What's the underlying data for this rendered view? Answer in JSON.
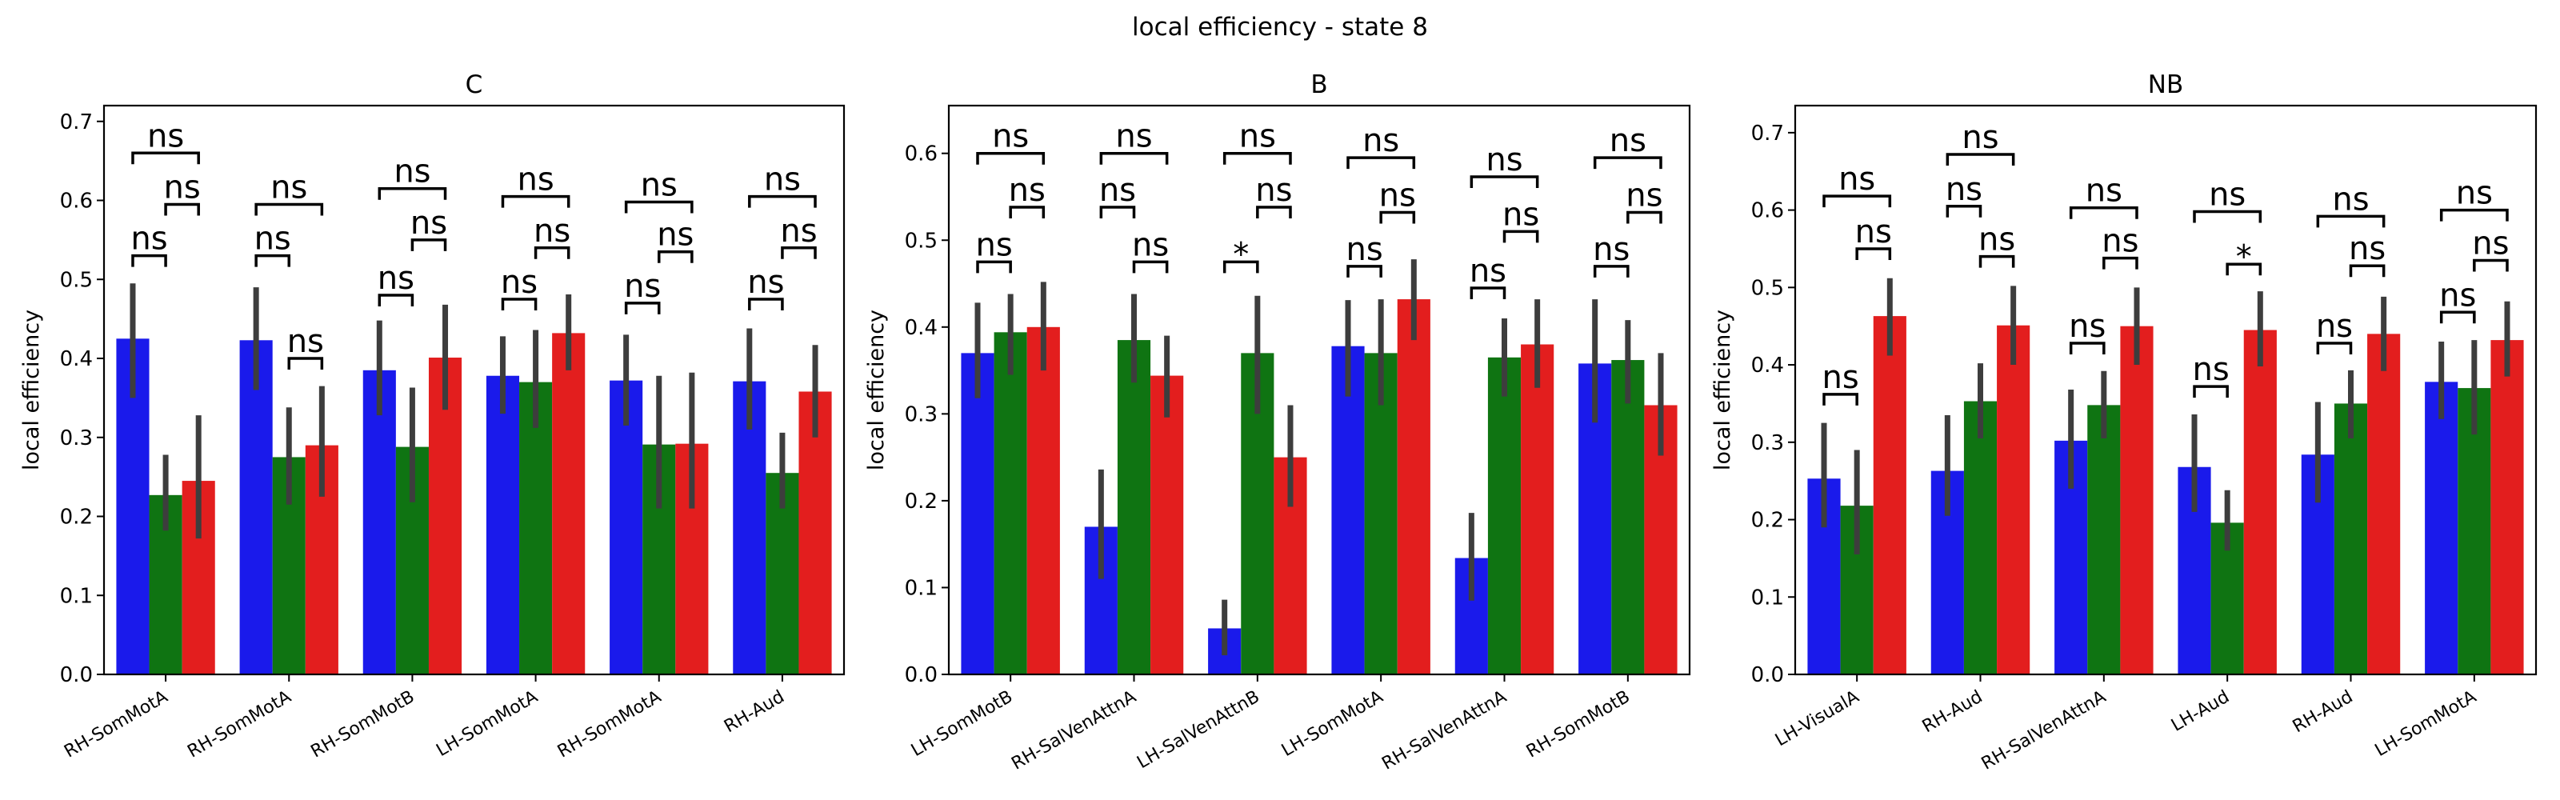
{
  "figure": {
    "title": "local efficiency - state 8"
  },
  "colors": {
    "series": [
      "#1a1aeb",
      "#0f7412",
      "#e31e1e"
    ],
    "error_bar": "#3d3d3d"
  },
  "chart_data": [
    {
      "type": "bar",
      "title": "C",
      "ylabel": "local efficiency",
      "ylim": [
        0,
        0.72
      ],
      "yticks": [
        0.0,
        0.1,
        0.2,
        0.3,
        0.4,
        0.5,
        0.6,
        0.7
      ],
      "ytick_labels": [
        "0.0",
        "0.1",
        "0.2",
        "0.3",
        "0.4",
        "0.5",
        "0.6",
        "0.7"
      ],
      "categories": [
        "RH-SomMotA",
        "RH-SomMotA",
        "RH-SomMotB",
        "LH-SomMotA",
        "RH-SomMotA",
        "RH-Aud"
      ],
      "series": [
        {
          "values": [
            0.425,
            0.423,
            0.385,
            0.378,
            0.372,
            0.371
          ],
          "err_low": [
            0.35,
            0.36,
            0.328,
            0.33,
            0.315,
            0.31
          ],
          "err_high": [
            0.495,
            0.49,
            0.448,
            0.428,
            0.43,
            0.438
          ]
        },
        {
          "values": [
            0.227,
            0.275,
            0.288,
            0.37,
            0.291,
            0.255
          ],
          "err_low": [
            0.182,
            0.215,
            0.218,
            0.312,
            0.21,
            0.21
          ],
          "err_high": [
            0.278,
            0.338,
            0.363,
            0.436,
            0.378,
            0.306
          ]
        },
        {
          "values": [
            0.245,
            0.29,
            0.401,
            0.432,
            0.292,
            0.358
          ],
          "err_low": [
            0.172,
            0.225,
            0.335,
            0.385,
            0.21,
            0.3
          ],
          "err_high": [
            0.328,
            0.365,
            0.468,
            0.481,
            0.382,
            0.417
          ]
        }
      ],
      "annotations": [
        {
          "group": 0,
          "from": 0,
          "to": 1,
          "y": 0.53,
          "label": "ns"
        },
        {
          "group": 0,
          "from": 1,
          "to": 2,
          "y": 0.595,
          "label": "ns"
        },
        {
          "group": 0,
          "from": 0,
          "to": 2,
          "y": 0.66,
          "label": "ns"
        },
        {
          "group": 1,
          "from": 0,
          "to": 1,
          "y": 0.53,
          "label": "ns"
        },
        {
          "group": 1,
          "from": 1,
          "to": 2,
          "y": 0.4,
          "label": "ns"
        },
        {
          "group": 1,
          "from": 0,
          "to": 2,
          "y": 0.595,
          "label": "ns"
        },
        {
          "group": 2,
          "from": 0,
          "to": 1,
          "y": 0.48,
          "label": "ns"
        },
        {
          "group": 2,
          "from": 1,
          "to": 2,
          "y": 0.55,
          "label": "ns"
        },
        {
          "group": 2,
          "from": 0,
          "to": 2,
          "y": 0.615,
          "label": "ns"
        },
        {
          "group": 3,
          "from": 0,
          "to": 1,
          "y": 0.475,
          "label": "ns"
        },
        {
          "group": 3,
          "from": 1,
          "to": 2,
          "y": 0.54,
          "label": "ns"
        },
        {
          "group": 3,
          "from": 0,
          "to": 2,
          "y": 0.605,
          "label": "ns"
        },
        {
          "group": 4,
          "from": 0,
          "to": 1,
          "y": 0.47,
          "label": "ns"
        },
        {
          "group": 4,
          "from": 1,
          "to": 2,
          "y": 0.535,
          "label": "ns"
        },
        {
          "group": 4,
          "from": 0,
          "to": 2,
          "y": 0.598,
          "label": "ns"
        },
        {
          "group": 5,
          "from": 0,
          "to": 1,
          "y": 0.475,
          "label": "ns"
        },
        {
          "group": 5,
          "from": 1,
          "to": 2,
          "y": 0.54,
          "label": "ns"
        },
        {
          "group": 5,
          "from": 0,
          "to": 2,
          "y": 0.605,
          "label": "ns"
        }
      ]
    },
    {
      "type": "bar",
      "title": "B",
      "ylabel": "local efficiency",
      "ylim": [
        0,
        0.655
      ],
      "yticks": [
        0.0,
        0.1,
        0.2,
        0.3,
        0.4,
        0.5,
        0.6
      ],
      "ytick_labels": [
        "0.0",
        "0.1",
        "0.2",
        "0.3",
        "0.4",
        "0.5",
        "0.6"
      ],
      "categories": [
        "LH-SomMotB",
        "RH-SalVenAttnA",
        "LH-SalVenAttnB",
        "LH-SomMotA",
        "RH-SalVenAttnA",
        "RH-SomMotB"
      ],
      "series": [
        {
          "values": [
            0.37,
            0.17,
            0.053,
            0.378,
            0.134,
            0.358
          ],
          "err_low": [
            0.318,
            0.11,
            0.022,
            0.32,
            0.085,
            0.29
          ],
          "err_high": [
            0.428,
            0.236,
            0.086,
            0.431,
            0.186,
            0.432
          ]
        },
        {
          "values": [
            0.394,
            0.385,
            0.37,
            0.37,
            0.365,
            0.362
          ],
          "err_low": [
            0.345,
            0.336,
            0.3,
            0.31,
            0.32,
            0.312
          ],
          "err_high": [
            0.438,
            0.438,
            0.436,
            0.432,
            0.41,
            0.408
          ]
        },
        {
          "values": [
            0.4,
            0.344,
            0.25,
            0.432,
            0.38,
            0.31
          ],
          "err_low": [
            0.35,
            0.296,
            0.193,
            0.385,
            0.33,
            0.252
          ],
          "err_high": [
            0.452,
            0.39,
            0.31,
            0.478,
            0.432,
            0.37
          ]
        }
      ],
      "annotations": [
        {
          "group": 0,
          "from": 0,
          "to": 1,
          "y": 0.475,
          "label": "ns"
        },
        {
          "group": 0,
          "from": 1,
          "to": 2,
          "y": 0.538,
          "label": "ns"
        },
        {
          "group": 0,
          "from": 0,
          "to": 2,
          "y": 0.6,
          "label": "ns"
        },
        {
          "group": 1,
          "from": 0,
          "to": 1,
          "y": 0.538,
          "label": "ns"
        },
        {
          "group": 1,
          "from": 1,
          "to": 2,
          "y": 0.475,
          "label": "ns"
        },
        {
          "group": 1,
          "from": 0,
          "to": 2,
          "y": 0.6,
          "label": "ns"
        },
        {
          "group": 2,
          "from": 0,
          "to": 1,
          "y": 0.475,
          "label": "*"
        },
        {
          "group": 2,
          "from": 1,
          "to": 2,
          "y": 0.538,
          "label": "ns"
        },
        {
          "group": 2,
          "from": 0,
          "to": 2,
          "y": 0.6,
          "label": "ns"
        },
        {
          "group": 3,
          "from": 0,
          "to": 1,
          "y": 0.47,
          "label": "ns"
        },
        {
          "group": 3,
          "from": 1,
          "to": 2,
          "y": 0.532,
          "label": "ns"
        },
        {
          "group": 3,
          "from": 0,
          "to": 2,
          "y": 0.595,
          "label": "ns"
        },
        {
          "group": 4,
          "from": 0,
          "to": 1,
          "y": 0.445,
          "label": "ns"
        },
        {
          "group": 4,
          "from": 1,
          "to": 2,
          "y": 0.51,
          "label": "ns"
        },
        {
          "group": 4,
          "from": 0,
          "to": 2,
          "y": 0.573,
          "label": "ns"
        },
        {
          "group": 5,
          "from": 0,
          "to": 1,
          "y": 0.47,
          "label": "ns"
        },
        {
          "group": 5,
          "from": 1,
          "to": 2,
          "y": 0.532,
          "label": "ns"
        },
        {
          "group": 5,
          "from": 0,
          "to": 2,
          "y": 0.595,
          "label": "ns"
        }
      ]
    },
    {
      "type": "bar",
      "title": "NB",
      "ylabel": "local efficiency",
      "ylim": [
        0,
        0.735
      ],
      "yticks": [
        0.0,
        0.1,
        0.2,
        0.3,
        0.4,
        0.5,
        0.6,
        0.7
      ],
      "ytick_labels": [
        "0.0",
        "0.1",
        "0.2",
        "0.3",
        "0.4",
        "0.5",
        "0.6",
        "0.7"
      ],
      "categories": [
        "LH-VisualA",
        "RH-Aud",
        "RH-SalVenAttnA",
        "LH-Aud",
        "RH-Aud",
        "LH-SomMotA"
      ],
      "series": [
        {
          "values": [
            0.253,
            0.263,
            0.302,
            0.268,
            0.284,
            0.378
          ],
          "err_low": [
            0.19,
            0.205,
            0.24,
            0.21,
            0.222,
            0.33
          ],
          "err_high": [
            0.325,
            0.335,
            0.368,
            0.336,
            0.352,
            0.43
          ]
        },
        {
          "values": [
            0.218,
            0.353,
            0.348,
            0.196,
            0.35,
            0.37
          ],
          "err_low": [
            0.155,
            0.305,
            0.305,
            0.16,
            0.305,
            0.31
          ],
          "err_high": [
            0.29,
            0.402,
            0.392,
            0.238,
            0.393,
            0.432
          ]
        },
        {
          "values": [
            0.463,
            0.451,
            0.45,
            0.445,
            0.44,
            0.432
          ],
          "err_low": [
            0.412,
            0.4,
            0.4,
            0.398,
            0.392,
            0.385
          ],
          "err_high": [
            0.512,
            0.502,
            0.5,
            0.495,
            0.488,
            0.482
          ]
        }
      ],
      "annotations": [
        {
          "group": 0,
          "from": 0,
          "to": 1,
          "y": 0.362,
          "label": "ns"
        },
        {
          "group": 0,
          "from": 1,
          "to": 2,
          "y": 0.55,
          "label": "ns"
        },
        {
          "group": 0,
          "from": 0,
          "to": 2,
          "y": 0.618,
          "label": "ns"
        },
        {
          "group": 1,
          "from": 0,
          "to": 1,
          "y": 0.605,
          "label": "ns"
        },
        {
          "group": 1,
          "from": 1,
          "to": 2,
          "y": 0.54,
          "label": "ns"
        },
        {
          "group": 1,
          "from": 0,
          "to": 2,
          "y": 0.672,
          "label": "ns"
        },
        {
          "group": 2,
          "from": 0,
          "to": 1,
          "y": 0.428,
          "label": "ns"
        },
        {
          "group": 2,
          "from": 1,
          "to": 2,
          "y": 0.538,
          "label": "ns"
        },
        {
          "group": 2,
          "from": 0,
          "to": 2,
          "y": 0.603,
          "label": "ns"
        },
        {
          "group": 3,
          "from": 0,
          "to": 1,
          "y": 0.372,
          "label": "ns"
        },
        {
          "group": 3,
          "from": 1,
          "to": 2,
          "y": 0.53,
          "label": "*"
        },
        {
          "group": 3,
          "from": 0,
          "to": 2,
          "y": 0.598,
          "label": "ns"
        },
        {
          "group": 4,
          "from": 0,
          "to": 1,
          "y": 0.428,
          "label": "ns"
        },
        {
          "group": 4,
          "from": 1,
          "to": 2,
          "y": 0.528,
          "label": "ns"
        },
        {
          "group": 4,
          "from": 0,
          "to": 2,
          "y": 0.592,
          "label": "ns"
        },
        {
          "group": 5,
          "from": 0,
          "to": 1,
          "y": 0.468,
          "label": "ns"
        },
        {
          "group": 5,
          "from": 1,
          "to": 2,
          "y": 0.535,
          "label": "ns"
        },
        {
          "group": 5,
          "from": 0,
          "to": 2,
          "y": 0.6,
          "label": "ns"
        }
      ]
    }
  ]
}
